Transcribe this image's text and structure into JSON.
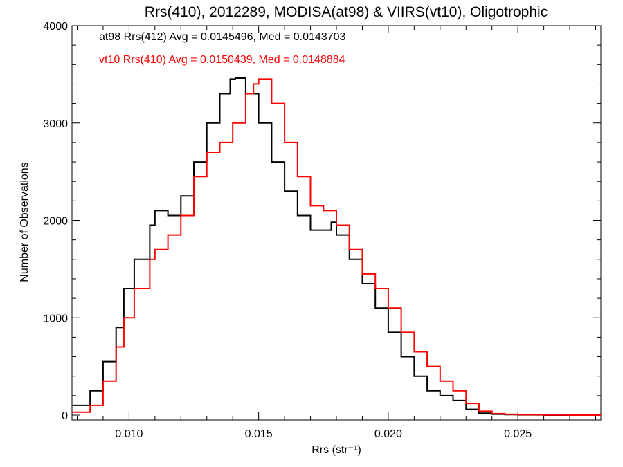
{
  "chart_data": {
    "type": "histogram",
    "title": "Rrs(410), 2012289, MODISA(at98) & VIIRS(vt10), Oligotrophic",
    "xlabel": "Rrs (str⁻¹)",
    "ylabel": "Number of Observations",
    "xlim": [
      0.0078,
      0.0282
    ],
    "ylim": [
      0,
      4000
    ],
    "xticks": [
      0.01,
      0.015,
      0.02,
      0.025
    ],
    "xtick_labels": [
      "0.010",
      "0.015",
      "0.020",
      "0.025"
    ],
    "yticks": [
      0,
      1000,
      2000,
      3000,
      4000
    ],
    "ytick_labels": [
      "0",
      "1000",
      "2000",
      "3000",
      "4000"
    ],
    "grid": false,
    "annotations": [
      {
        "text": "at98 Rrs(412) Avg = 0.0145496, Med = 0.0143703",
        "color": "#000000"
      },
      {
        "text": "vt10 Rrs(410) Avg = 0.0150439, Med = 0.0148884",
        "color": "#ff0000"
      }
    ],
    "series": [
      {
        "color": "#000000",
        "x": [
          0.0078,
          0.0085,
          0.009,
          0.0095,
          0.0098,
          0.0102,
          0.0108,
          0.011,
          0.0115,
          0.012,
          0.0125,
          0.013,
          0.0135,
          0.0139,
          0.0141,
          0.0145,
          0.015,
          0.0155,
          0.016,
          0.0165,
          0.017,
          0.0175,
          0.0178,
          0.018,
          0.0185,
          0.019,
          0.0195,
          0.02,
          0.0205,
          0.021,
          0.0215,
          0.022,
          0.0225,
          0.023,
          0.0235,
          0.024,
          0.0245,
          0.025,
          0.026,
          0.027,
          0.0282
        ],
        "y": [
          100,
          250,
          550,
          900,
          1300,
          1600,
          1950,
          2100,
          2050,
          2250,
          2600,
          3000,
          3300,
          3450,
          3460,
          3300,
          3000,
          2600,
          2300,
          2050,
          1900,
          1900,
          1980,
          1850,
          1600,
          1350,
          1100,
          850,
          600,
          400,
          250,
          200,
          150,
          60,
          20,
          10,
          5,
          3,
          0,
          0,
          0
        ]
      },
      {
        "color": "#ff0000",
        "x": [
          0.0078,
          0.0085,
          0.009,
          0.0095,
          0.0098,
          0.0102,
          0.0108,
          0.011,
          0.0115,
          0.012,
          0.0125,
          0.013,
          0.0135,
          0.014,
          0.0145,
          0.0148,
          0.015,
          0.0155,
          0.016,
          0.0165,
          0.017,
          0.0175,
          0.018,
          0.0185,
          0.019,
          0.0195,
          0.02,
          0.0205,
          0.021,
          0.0215,
          0.022,
          0.0225,
          0.023,
          0.0235,
          0.024,
          0.0245,
          0.025,
          0.026,
          0.027,
          0.0282
        ],
        "y": [
          30,
          100,
          350,
          700,
          1000,
          1300,
          1600,
          1700,
          1850,
          2050,
          2450,
          2700,
          2800,
          3000,
          3300,
          3400,
          3450,
          3200,
          2800,
          2450,
          2150,
          2100,
          1950,
          1700,
          1450,
          1300,
          1100,
          850,
          650,
          500,
          350,
          250,
          120,
          40,
          15,
          8,
          4,
          2,
          0,
          0
        ]
      }
    ]
  }
}
